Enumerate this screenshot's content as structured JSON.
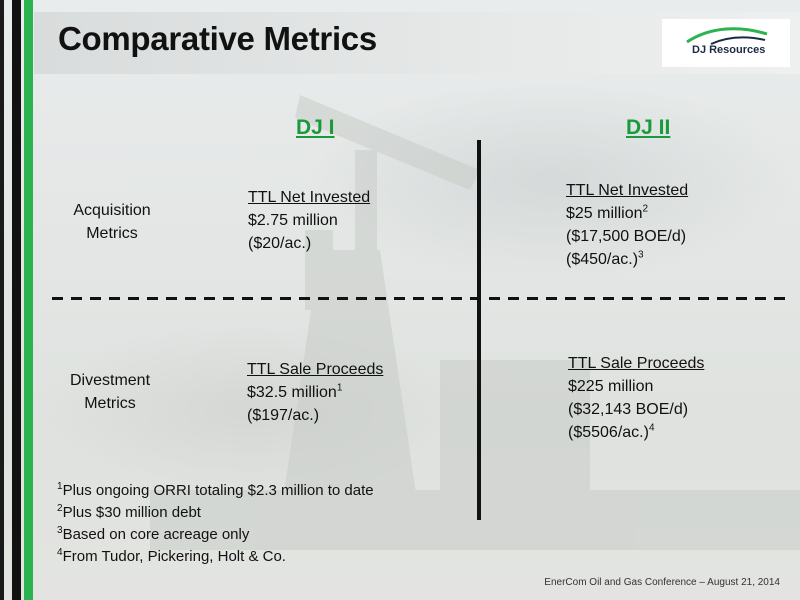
{
  "title": "Comparative Metrics",
  "logo": {
    "text": "DJ Resources",
    "icon": "dj-resources-swoosh-logo",
    "accent": "#2ab34e"
  },
  "columns": [
    "DJ I",
    "DJ II"
  ],
  "rows": [
    {
      "label_line1": "Acquisition",
      "label_line2": "Metrics",
      "dj1": {
        "header": "TTL Net Invested",
        "lines": [
          {
            "text": "$2.75 million",
            "sup": ""
          },
          {
            "text": "($20/ac.)",
            "sup": ""
          }
        ]
      },
      "dj2": {
        "header": "TTL Net Invested",
        "lines": [
          {
            "text": "$25 million",
            "sup": "2"
          },
          {
            "text": "($17,500 BOE/d)",
            "sup": ""
          },
          {
            "text": "($450/ac.)",
            "sup": "3"
          }
        ]
      }
    },
    {
      "label_line1": "Divestment",
      "label_line2": "Metrics",
      "dj1": {
        "header": "TTL Sale Proceeds",
        "lines": [
          {
            "text": "$32.5 million",
            "sup": "1"
          },
          {
            "text": "($197/ac.)",
            "sup": ""
          }
        ]
      },
      "dj2": {
        "header": "TTL Sale Proceeds",
        "lines": [
          {
            "text": "$225 million",
            "sup": ""
          },
          {
            "text": "($32,143 BOE/d)",
            "sup": ""
          },
          {
            "text": "($5506/ac.)",
            "sup": "4"
          }
        ]
      }
    }
  ],
  "footnotes": [
    {
      "mark": "1",
      "text": "Plus ongoing ORRI totaling $2.3 million to date"
    },
    {
      "mark": "2",
      "text": "Plus $30 million debt"
    },
    {
      "mark": "3",
      "text": "Based on core acreage only"
    },
    {
      "mark": "4",
      "text": "From Tudor, Pickering, Holt & Co."
    }
  ],
  "footer": "EnerCom Oil and Gas Conference – August 21, 2014",
  "colors": {
    "green_heading": "#1a9a3c",
    "side_bar_green": "#2ab34e",
    "side_bar_black": "#111111"
  }
}
